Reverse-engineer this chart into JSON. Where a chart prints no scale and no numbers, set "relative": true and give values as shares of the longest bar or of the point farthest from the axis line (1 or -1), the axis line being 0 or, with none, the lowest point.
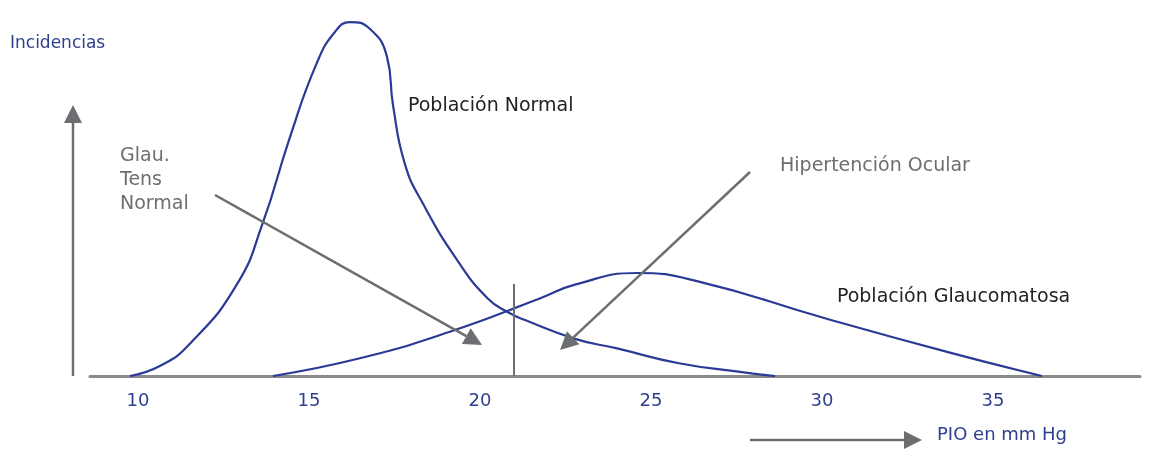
{
  "chart_data": {
    "type": "line",
    "xlabel": "PIO en mm Hg",
    "ylabel": "Incidencias",
    "relative": true,
    "xlim": [
      8.6,
      39.3
    ],
    "xticks": [
      10,
      15,
      20,
      25,
      30,
      35
    ],
    "grid": false,
    "legend": false,
    "marker": "none",
    "line_style": "solid",
    "series": [
      {
        "name": "Población Normal",
        "color": "#2b3a94",
        "x": [
          9.77,
          10.64,
          11.52,
          12.89,
          13.65,
          14.44,
          15.23,
          15.76,
          16.2,
          16.78,
          17.28,
          17.46,
          17.81,
          18.33,
          19.36,
          20.23,
          20.82,
          21.32,
          22.78,
          24.01,
          25.82,
          27.66,
          28.63
        ],
        "values": [
          0,
          0.028,
          0.091,
          0.258,
          0.432,
          0.673,
          0.884,
          0.972,
          1,
          0.981,
          0.903,
          0.765,
          0.598,
          0.488,
          0.324,
          0.219,
          0.18,
          0.158,
          0.105,
          0.078,
          0.036,
          0.011,
          0
        ]
      },
      {
        "name": "Población Glaucomatosa",
        "color": "#2b3a94",
        "x": [
          13.95,
          16.49,
          19.12,
          21.75,
          22.78,
          24.59,
          26.43,
          30.09,
          33.74,
          36.43
        ],
        "values": [
          0,
          0.05,
          0.125,
          0.219,
          0.258,
          0.291,
          0.266,
          0.163,
          0.066,
          0
        ]
      }
    ],
    "ref_lines": [
      {
        "axis": "x",
        "value": 21,
        "color": "#6d6e71"
      }
    ],
    "annotations": [
      "Glau.\nTens\nNormal",
      "Hipertención Ocular"
    ]
  }
}
